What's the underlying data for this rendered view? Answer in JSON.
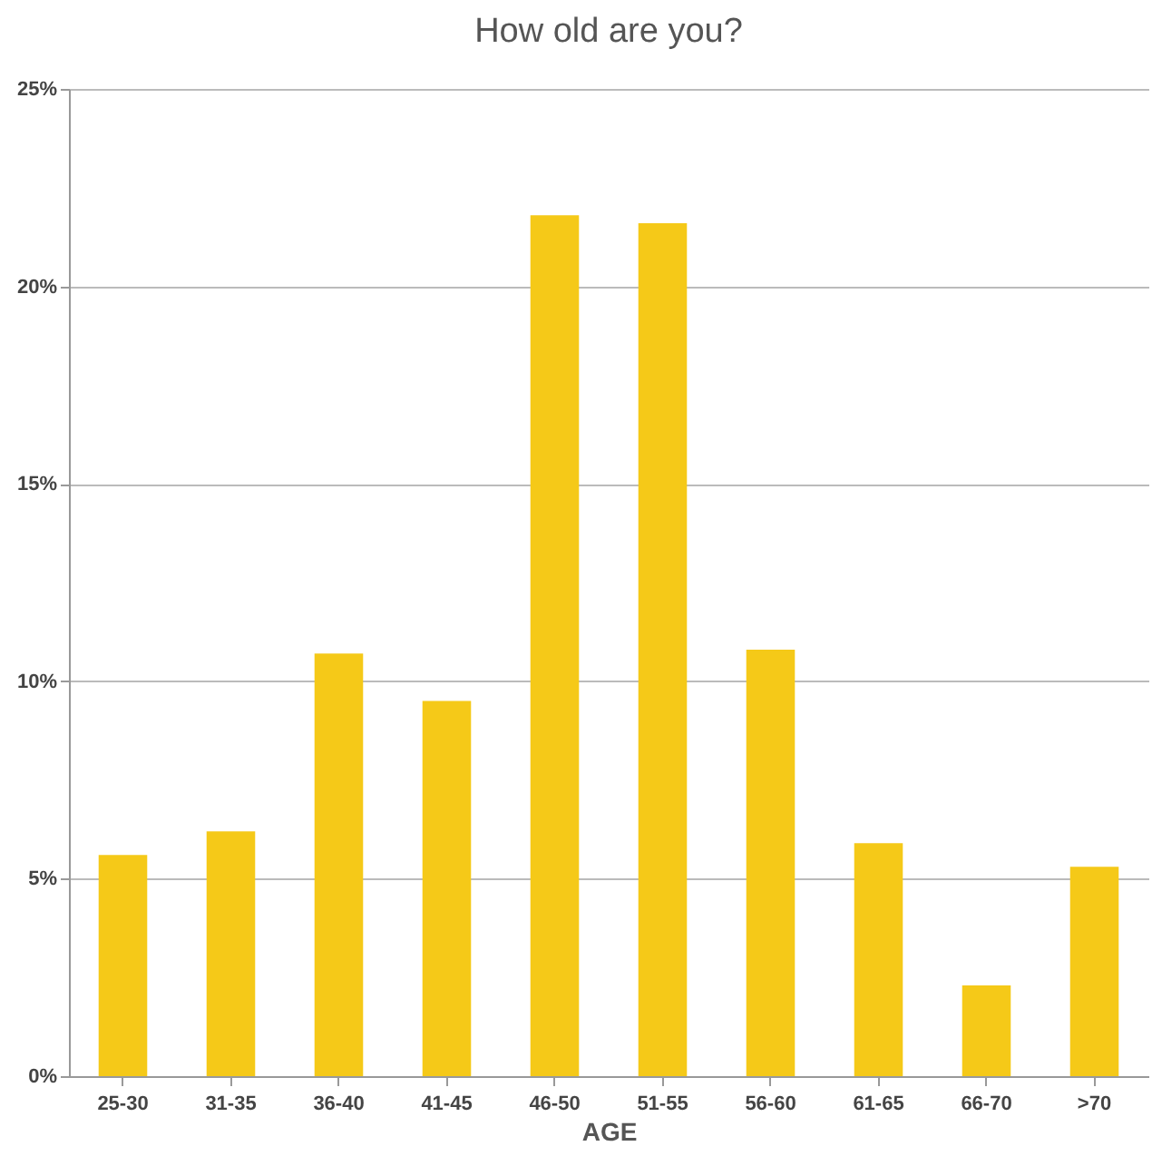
{
  "chart_data": {
    "type": "bar",
    "title": "How old are you?",
    "xlabel": "AGE",
    "categories": [
      "25-30",
      "31-35",
      "36-40",
      "41-45",
      "46-50",
      "51-55",
      "56-60",
      "61-65",
      "66-70",
      ">70"
    ],
    "values": [
      5.6,
      6.2,
      10.7,
      9.5,
      21.8,
      21.6,
      10.8,
      5.9,
      2.3,
      5.3
    ],
    "color": "#f5c918",
    "ylim": [
      0,
      25
    ],
    "yticks": [
      {
        "value": 0,
        "label": "0%"
      },
      {
        "value": 5,
        "label": "5%"
      },
      {
        "value": 10,
        "label": "10%"
      },
      {
        "value": 15,
        "label": "15%"
      },
      {
        "value": 20,
        "label": "20%"
      },
      {
        "value": 25,
        "label": "25%"
      }
    ],
    "grid": "y"
  }
}
